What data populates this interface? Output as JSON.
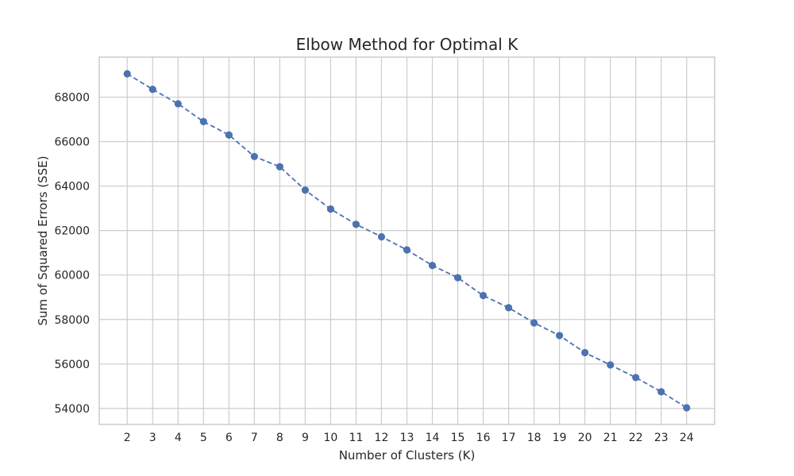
{
  "chart_data": {
    "type": "line",
    "title": "Elbow Method for Optimal K",
    "xlabel": "Number of Clusters (K)",
    "ylabel": "Sum of Squared Errors (SSE)",
    "x": [
      2,
      3,
      4,
      5,
      6,
      7,
      8,
      9,
      10,
      11,
      12,
      13,
      14,
      15,
      16,
      17,
      18,
      19,
      20,
      21,
      22,
      23,
      24
    ],
    "series": [
      {
        "values": [
          69050,
          68350,
          67700,
          66900,
          66300,
          65330,
          64870,
          63820,
          62970,
          62280,
          61720,
          61130,
          60430,
          59880,
          59080,
          58530,
          57850,
          57280,
          56510,
          55960,
          55390,
          54750,
          54030
        ],
        "color": "#4c72b0",
        "line_style": "dashed",
        "marker": "circle"
      }
    ],
    "xticks": [
      2,
      3,
      4,
      5,
      6,
      7,
      8,
      9,
      10,
      11,
      12,
      13,
      14,
      15,
      16,
      17,
      18,
      19,
      20,
      21,
      22,
      23,
      24
    ],
    "yticks": [
      54000,
      56000,
      58000,
      60000,
      62000,
      64000,
      66000,
      68000
    ],
    "xlim": [
      0.9,
      25.1
    ],
    "ylim": [
      53282,
      69800
    ],
    "grid": true
  }
}
